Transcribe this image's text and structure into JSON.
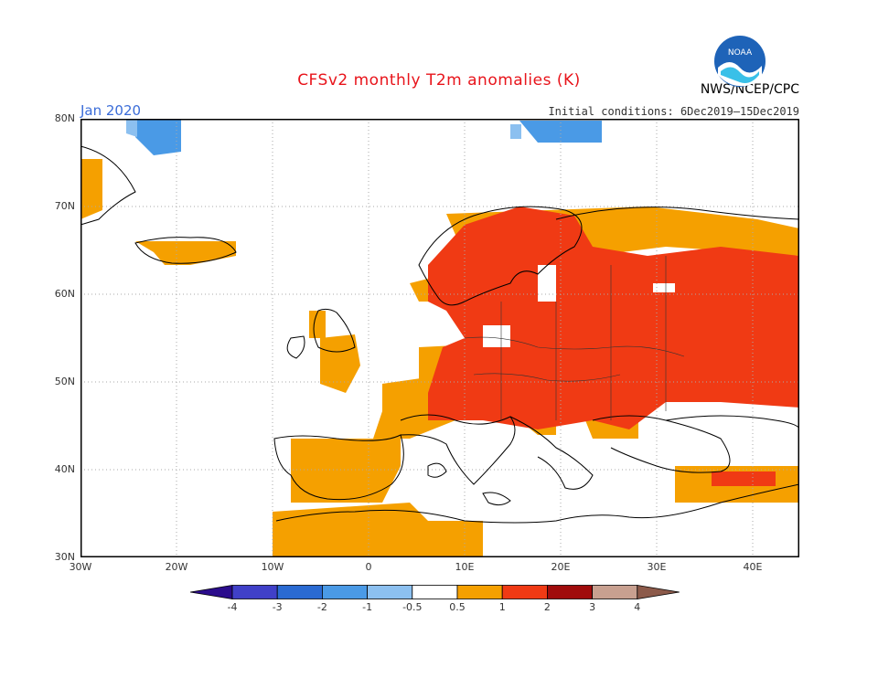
{
  "title": "CFSv2 monthly T2m anomalies (K)",
  "valid_month": "Jan 2020",
  "initial_conditions": "Initial conditions: 6Dec2019–15Dec2019",
  "organization": "NWS/NCEP/CPC",
  "logo_text": "NOAA",
  "lat_labels": [
    "80N",
    "70N",
    "60N",
    "50N",
    "40N",
    "30N"
  ],
  "lon_labels": [
    "30W",
    "20W",
    "10W",
    "0",
    "10E",
    "20E",
    "30E",
    "40E"
  ],
  "colorbar": {
    "tick_labels": [
      "-4",
      "-3",
      "-2",
      "-1",
      "-0.5",
      "0.5",
      "1",
      "2",
      "3",
      "4"
    ],
    "colors": [
      "#2b0c8c",
      "#4040c8",
      "#2a6ad2",
      "#4a9ae6",
      "#8cc0f0",
      "#ffffff",
      "#f5a000",
      "#f03a14",
      "#a00c0c",
      "#c8a090",
      "#8c5a4a"
    ]
  }
}
